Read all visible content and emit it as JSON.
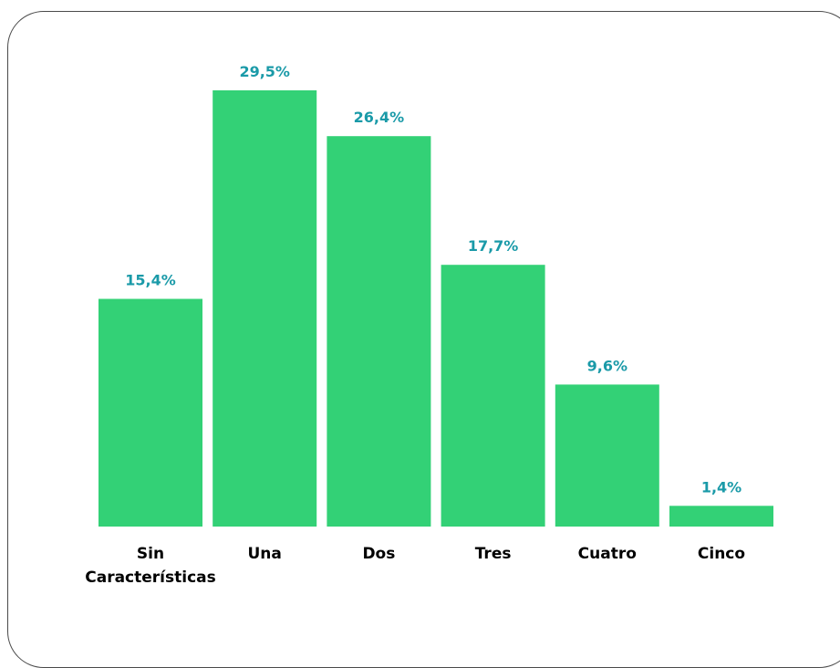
{
  "chart_data": {
    "type": "bar",
    "title": "",
    "xlabel": "",
    "ylabel": "",
    "categories": [
      [
        "Sin",
        "Características"
      ],
      [
        "Una"
      ],
      [
        "Dos"
      ],
      [
        "Tres"
      ],
      [
        "Cuatro"
      ],
      [
        "Cinco"
      ]
    ],
    "values": [
      15.4,
      29.5,
      26.4,
      17.7,
      9.6,
      1.4
    ],
    "data_labels": [
      "15,4%",
      "29,5%",
      "26,4%",
      "17,7%",
      "9,6%",
      "1,4%"
    ],
    "ylim": [
      0,
      29.5
    ],
    "grid": false,
    "legend": "none",
    "colors": {
      "bar": "#33d176",
      "value_label": "#1a9aa8",
      "category_label": "#000000",
      "frame_border": "#4a4a4a"
    }
  }
}
